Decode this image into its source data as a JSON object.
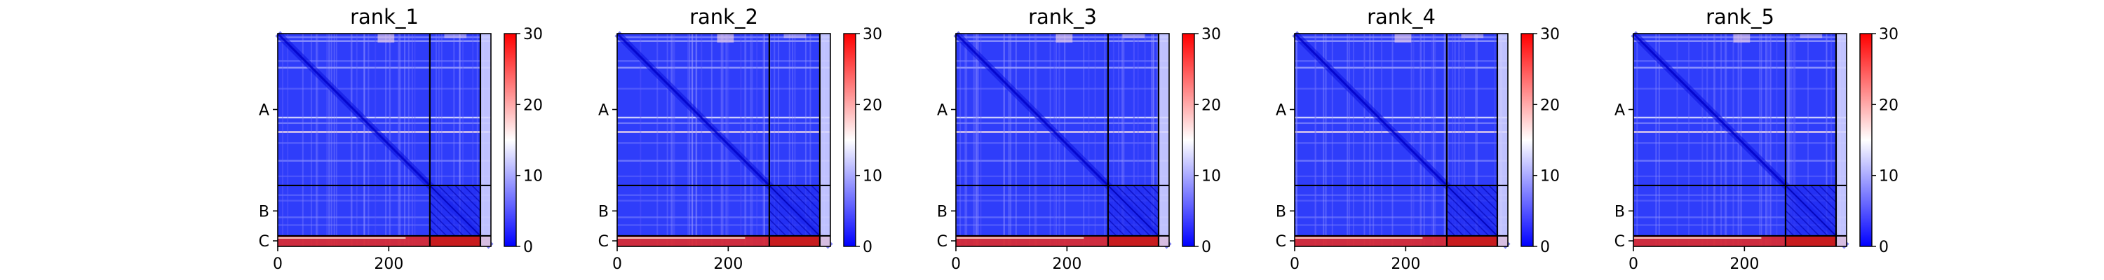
{
  "chart_data": [
    {
      "type": "heatmap",
      "title": "rank_1",
      "colorbar_ticks": [
        "0",
        "10",
        "20",
        "30"
      ],
      "x_ticks": [
        "0",
        "200"
      ],
      "y_ticks": [
        "A",
        "B",
        "C"
      ],
      "x_ticks_values": [
        0,
        200
      ],
      "xlim": [
        0,
        384
      ],
      "ylim": [
        0,
        384
      ],
      "vmin": 0,
      "vmax": 30,
      "colormap": "bwr",
      "chain_boundaries": [
        274,
        365
      ],
      "chain_centers": {
        "A": 137,
        "B": 320,
        "C": 374
      }
    },
    {
      "type": "heatmap",
      "title": "rank_2",
      "colorbar_ticks": [
        "0",
        "10",
        "20",
        "30"
      ],
      "x_ticks": [
        "0",
        "200"
      ],
      "y_ticks": [
        "A",
        "B",
        "C"
      ],
      "x_ticks_values": [
        0,
        200
      ],
      "xlim": [
        0,
        384
      ],
      "ylim": [
        0,
        384
      ],
      "vmin": 0,
      "vmax": 30,
      "colormap": "bwr",
      "chain_boundaries": [
        274,
        365
      ],
      "chain_centers": {
        "A": 137,
        "B": 320,
        "C": 374
      }
    },
    {
      "type": "heatmap",
      "title": "rank_3",
      "colorbar_ticks": [
        "0",
        "10",
        "20",
        "30"
      ],
      "x_ticks": [
        "0",
        "200"
      ],
      "y_ticks": [
        "A",
        "B",
        "C"
      ],
      "x_ticks_values": [
        0,
        200
      ],
      "xlim": [
        0,
        384
      ],
      "ylim": [
        0,
        384
      ],
      "vmin": 0,
      "vmax": 30,
      "colormap": "bwr",
      "chain_boundaries": [
        274,
        365
      ],
      "chain_centers": {
        "A": 137,
        "B": 320,
        "C": 374
      }
    },
    {
      "type": "heatmap",
      "title": "rank_4",
      "colorbar_ticks": [
        "0",
        "10",
        "20",
        "30"
      ],
      "x_ticks": [
        "0",
        "200"
      ],
      "y_ticks": [
        "A",
        "B",
        "C"
      ],
      "x_ticks_values": [
        0,
        200
      ],
      "xlim": [
        0,
        384
      ],
      "ylim": [
        0,
        384
      ],
      "vmin": 0,
      "vmax": 30,
      "colormap": "bwr",
      "chain_boundaries": [
        274,
        365
      ],
      "chain_centers": {
        "A": 137,
        "B": 320,
        "C": 374
      }
    },
    {
      "type": "heatmap",
      "title": "rank_5",
      "colorbar_ticks": [
        "0",
        "10",
        "20",
        "30"
      ],
      "x_ticks": [
        "0",
        "200"
      ],
      "y_ticks": [
        "A",
        "B",
        "C"
      ],
      "x_ticks_values": [
        0,
        200
      ],
      "xlim": [
        0,
        384
      ],
      "ylim": [
        0,
        384
      ],
      "vmin": 0,
      "vmax": 30,
      "colormap": "bwr",
      "chain_boundaries": [
        274,
        365
      ],
      "chain_centers": {
        "A": 137,
        "B": 320,
        "C": 374
      }
    }
  ]
}
